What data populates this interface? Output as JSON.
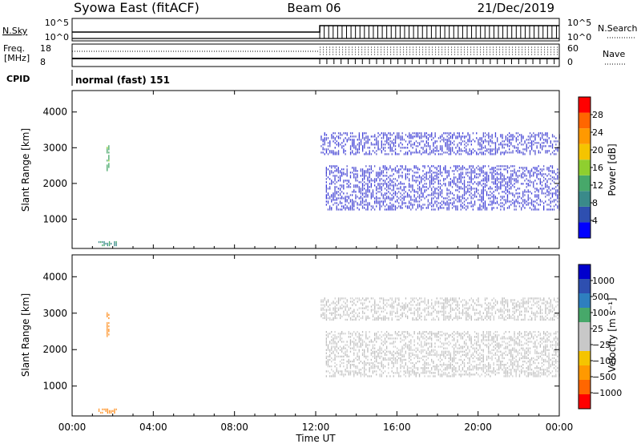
{
  "header": {
    "station": "Syowa East (fitACF)",
    "beam": "Beam 06",
    "date": "21/Dec/2019"
  },
  "top_panels": {
    "nsky_label": "N.Sky",
    "nsearch_label": "N.Search",
    "count_ticks": [
      "10^5",
      "10^0"
    ],
    "freq_label_1": "Freq.",
    "freq_label_2": "[MHz]",
    "freq_ticks": [
      "18",
      "8"
    ],
    "nave_label": "Nave",
    "nave_ticks": [
      "60",
      "0"
    ],
    "cpid_label": "CPID",
    "cpid_text": "normal (fast) 151"
  },
  "colors": {
    "power": [
      "#0000ff",
      "#2e4fb0",
      "#3a8a8a",
      "#47a86a",
      "#8fcf2f",
      "#f5c400",
      "#ff9900",
      "#ff6600",
      "#ff0000"
    ],
    "velocity": [
      "#ff0000",
      "#ff6600",
      "#ff9900",
      "#f5c400",
      "#c8c8c8",
      "#c8c8c8",
      "#47a86a",
      "#2e7fbf",
      "#2e4fb0",
      "#0000cc"
    ]
  },
  "chart_data": [
    {
      "type": "heatmap",
      "name": "power",
      "ylabel": "Slant Range [km]",
      "xlabel": "Time UT",
      "x_ticks": [
        "00:00",
        "04:00",
        "08:00",
        "12:00",
        "16:00",
        "20:00",
        "00:00"
      ],
      "x_range_hours": [
        0,
        24
      ],
      "y_ticks": [
        1000,
        2000,
        3000,
        4000
      ],
      "y_range_km": [
        180,
        4600
      ],
      "colorbar": {
        "label": "Power [dB]",
        "ticks": [
          "4",
          "8",
          "12",
          "16",
          "20",
          "24",
          "28"
        ],
        "range": [
          0,
          32
        ]
      },
      "regions": [
        {
          "t_start": 12.25,
          "t_end": 24.0,
          "r_start": 2800,
          "r_end": 3400,
          "level": 2
        },
        {
          "t_start": 12.5,
          "t_end": 24.0,
          "r_start": 1250,
          "r_end": 2500,
          "level": 2
        },
        {
          "t_start": 1.7,
          "t_end": 1.85,
          "r_start": 2350,
          "r_end": 3050,
          "level": 12
        },
        {
          "t_start": 1.3,
          "t_end": 2.2,
          "r_start": 250,
          "r_end": 350,
          "level": 10
        }
      ]
    },
    {
      "type": "heatmap",
      "name": "velocity",
      "ylabel": "Slant Range [km]",
      "xlabel": "Time UT",
      "x_ticks": [
        "00:00",
        "04:00",
        "08:00",
        "12:00",
        "16:00",
        "20:00",
        "00:00"
      ],
      "x_range_hours": [
        0,
        24
      ],
      "y_ticks": [
        1000,
        2000,
        3000,
        4000
      ],
      "y_range_km": [
        180,
        4600
      ],
      "colorbar": {
        "label": "Velocity [m s⁻¹]",
        "ticks": [
          "1000",
          "500",
          "100",
          "25",
          "−25",
          "−100",
          "−500",
          "−1000"
        ]
      },
      "regions": [
        {
          "t_start": 12.25,
          "t_end": 24.0,
          "r_start": 2800,
          "r_end": 3400,
          "level": 0
        },
        {
          "t_start": 12.5,
          "t_end": 24.0,
          "r_start": 1250,
          "r_end": 2500,
          "level": 0
        },
        {
          "t_start": 1.7,
          "t_end": 1.85,
          "r_start": 2350,
          "r_end": 3050,
          "level": -150
        },
        {
          "t_start": 1.3,
          "t_end": 2.2,
          "r_start": 250,
          "r_end": 350,
          "level": -150
        }
      ]
    }
  ]
}
